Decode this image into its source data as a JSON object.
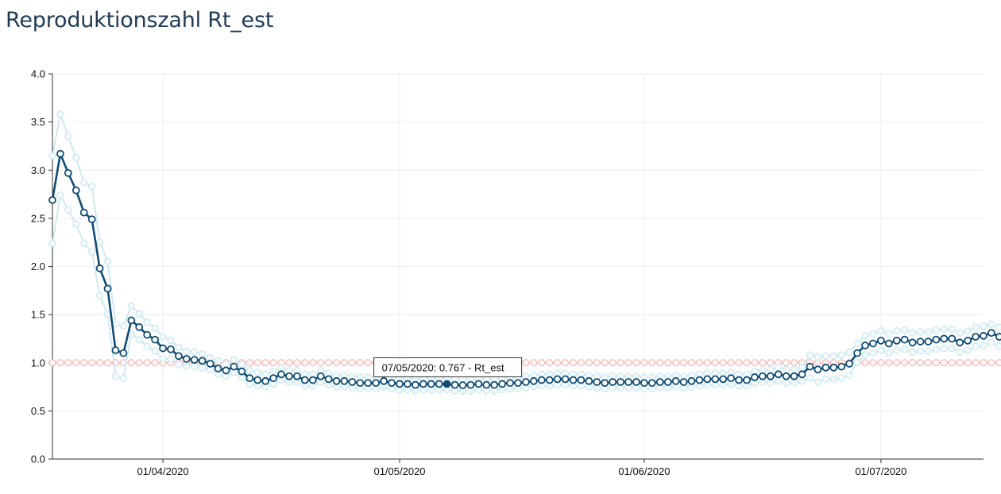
{
  "title": "Reproduktionszahl Rt_est",
  "colors": {
    "main": "#0f4c75",
    "band": "#cfe8ee",
    "threshold": "#f4b8b8",
    "grid": "#eeeeee"
  },
  "tooltip": {
    "text": "07/05/2020: 0.767 - Rt_est"
  },
  "chart_data": {
    "type": "line",
    "title": "Reproduktionszahl Rt_est",
    "xlabel": "",
    "ylabel": "",
    "ylim": [
      0,
      4
    ],
    "yticks": [
      "0.0",
      "0.5",
      "1.0",
      "1.5",
      "2.0",
      "2.5",
      "3.0",
      "3.5",
      "4.0"
    ],
    "xticks": [
      "01/04/2020",
      "01/05/2020",
      "01/06/2020",
      "01/07/2020"
    ],
    "x_start": "2020-03-18",
    "x_end": "2020-07-14",
    "grid": true,
    "threshold": 1.0,
    "highlight": {
      "date": "2020-05-07",
      "value": 0.767
    },
    "series": [
      {
        "name": "Rt_est",
        "values": [
          2.69,
          3.17,
          2.97,
          2.79,
          2.56,
          2.49,
          1.98,
          1.77,
          1.13,
          1.1,
          1.44,
          1.37,
          1.29,
          1.24,
          1.15,
          1.14,
          1.07,
          1.04,
          1.03,
          1.02,
          0.99,
          0.94,
          0.92,
          0.96,
          0.91,
          0.84,
          0.82,
          0.81,
          0.84,
          0.88,
          0.86,
          0.86,
          0.82,
          0.82,
          0.86,
          0.83,
          0.81,
          0.81,
          0.8,
          0.79,
          0.79,
          0.79,
          0.81,
          0.79,
          0.78,
          0.78,
          0.77,
          0.78,
          0.78,
          0.78,
          0.78,
          0.77,
          0.767,
          0.77,
          0.78,
          0.77,
          0.77,
          0.78,
          0.79,
          0.79,
          0.8,
          0.81,
          0.82,
          0.82,
          0.83,
          0.83,
          0.82,
          0.82,
          0.81,
          0.8,
          0.79,
          0.8,
          0.8,
          0.8,
          0.8,
          0.79,
          0.79,
          0.8,
          0.8,
          0.81,
          0.8,
          0.81,
          0.82,
          0.83,
          0.83,
          0.83,
          0.84,
          0.82,
          0.82,
          0.85,
          0.86,
          0.86,
          0.88,
          0.86,
          0.86,
          0.88,
          0.96,
          0.93,
          0.95,
          0.95,
          0.96,
          0.99,
          1.1,
          1.18,
          1.2,
          1.23,
          1.2,
          1.23,
          1.24,
          1.21,
          1.22,
          1.22,
          1.24,
          1.25,
          1.25,
          1.21,
          1.23,
          1.27,
          1.28,
          1.31,
          1.27
        ]
      },
      {
        "name": "",
        "values": [
          3.15,
          3.58,
          3.35,
          3.13,
          2.87,
          2.83,
          2.25,
          2.05,
          1.4,
          1.38,
          1.59,
          1.51,
          1.42,
          1.36,
          1.27,
          1.23,
          1.16,
          1.12,
          1.11,
          1.09,
          1.05,
          1.02,
          0.99,
          1.03,
          0.98,
          0.92,
          0.9,
          0.88,
          0.91,
          0.95,
          0.92,
          0.92,
          0.88,
          0.88,
          0.92,
          0.89,
          0.87,
          0.87,
          0.86,
          0.85,
          0.85,
          0.85,
          0.87,
          0.85,
          0.84,
          0.84,
          0.83,
          0.84,
          0.84,
          0.84,
          0.84,
          0.83,
          0.83,
          0.83,
          0.84,
          0.83,
          0.83,
          0.84,
          0.85,
          0.85,
          0.86,
          0.87,
          0.88,
          0.88,
          0.89,
          0.89,
          0.88,
          0.88,
          0.87,
          0.86,
          0.85,
          0.86,
          0.86,
          0.86,
          0.86,
          0.85,
          0.85,
          0.86,
          0.86,
          0.87,
          0.86,
          0.87,
          0.88,
          0.89,
          0.89,
          0.89,
          0.9,
          0.88,
          0.88,
          0.91,
          0.92,
          0.93,
          0.95,
          0.93,
          0.93,
          0.95,
          1.08,
          1.06,
          1.07,
          1.07,
          1.08,
          1.11,
          1.2,
          1.28,
          1.3,
          1.33,
          1.3,
          1.33,
          1.34,
          1.31,
          1.32,
          1.32,
          1.34,
          1.35,
          1.35,
          1.31,
          1.33,
          1.37,
          1.38,
          1.4,
          1.37
        ]
      },
      {
        "name": "",
        "values": [
          2.24,
          2.74,
          2.59,
          2.44,
          2.24,
          2.15,
          1.7,
          1.5,
          0.86,
          0.84,
          1.3,
          1.24,
          1.17,
          1.12,
          1.04,
          1.04,
          0.98,
          0.96,
          0.96,
          0.95,
          0.93,
          0.88,
          0.86,
          0.9,
          0.85,
          0.78,
          0.76,
          0.75,
          0.78,
          0.82,
          0.8,
          0.8,
          0.76,
          0.76,
          0.8,
          0.77,
          0.75,
          0.75,
          0.74,
          0.73,
          0.73,
          0.73,
          0.75,
          0.73,
          0.72,
          0.72,
          0.71,
          0.72,
          0.72,
          0.72,
          0.72,
          0.71,
          0.71,
          0.71,
          0.72,
          0.71,
          0.71,
          0.72,
          0.73,
          0.73,
          0.74,
          0.75,
          0.76,
          0.76,
          0.77,
          0.77,
          0.76,
          0.76,
          0.75,
          0.74,
          0.73,
          0.74,
          0.74,
          0.74,
          0.74,
          0.73,
          0.73,
          0.74,
          0.74,
          0.75,
          0.74,
          0.75,
          0.76,
          0.77,
          0.77,
          0.77,
          0.78,
          0.76,
          0.76,
          0.79,
          0.8,
          0.79,
          0.81,
          0.79,
          0.79,
          0.81,
          0.84,
          0.8,
          0.83,
          0.83,
          0.84,
          0.87,
          1.0,
          1.08,
          1.1,
          1.13,
          1.1,
          1.13,
          1.14,
          1.11,
          1.12,
          1.12,
          1.14,
          1.15,
          1.15,
          1.11,
          1.13,
          1.17,
          1.18,
          1.21,
          1.17
        ]
      }
    ]
  }
}
